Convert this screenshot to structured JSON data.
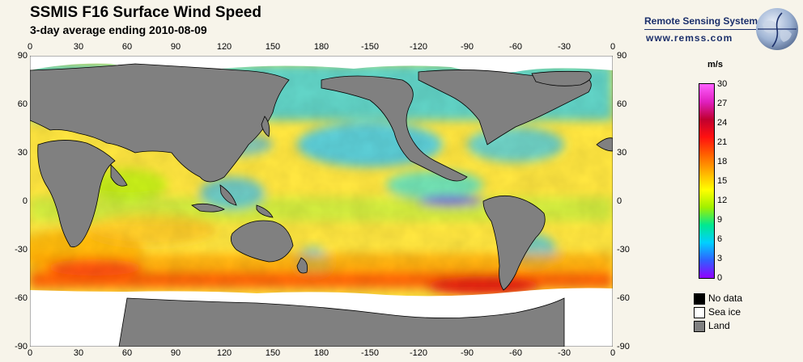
{
  "header": {
    "title": "SSMIS F16 Surface Wind Speed",
    "subtitle": "3-day average ending 2010-08-09"
  },
  "brand": {
    "name": "Remote Sensing Systems",
    "url": "www.remss.com"
  },
  "map": {
    "top_lon_ticks": [
      "0",
      "30",
      "60",
      "90",
      "120",
      "150",
      "180",
      "-150",
      "-120",
      "-90",
      "-60",
      "-30",
      "0"
    ],
    "bottom_lon_ticks": [
      "0",
      "30",
      "60",
      "90",
      "120",
      "150",
      "180",
      "-150",
      "-120",
      "-90",
      "-60",
      "-30",
      "0"
    ],
    "lat_ticks": [
      "90",
      "60",
      "30",
      "0",
      "-30",
      "-60",
      "-90"
    ],
    "colors": {
      "ocean_base": "#ffe640",
      "land": "#808080",
      "sea_ice": "#ffffff",
      "no_data": "#000000"
    }
  },
  "colorbar": {
    "unit": "m/s",
    "labels": [
      "30",
      "27",
      "24",
      "21",
      "18",
      "15",
      "12",
      "9",
      "6",
      "3",
      "0"
    ],
    "range": [
      0,
      30
    ],
    "stops": [
      "#9000ff",
      "#3060ff",
      "#00d0ff",
      "#00e890",
      "#a0f000",
      "#ffff00",
      "#ffb000",
      "#ff6000",
      "#ff1010",
      "#c00030",
      "#e020c0",
      "#ff60ff"
    ]
  },
  "legend": [
    {
      "label": "No data",
      "color": "#000000"
    },
    {
      "label": "Sea ice",
      "color": "#ffffff"
    },
    {
      "label": "Land",
      "color": "#808080"
    }
  ]
}
